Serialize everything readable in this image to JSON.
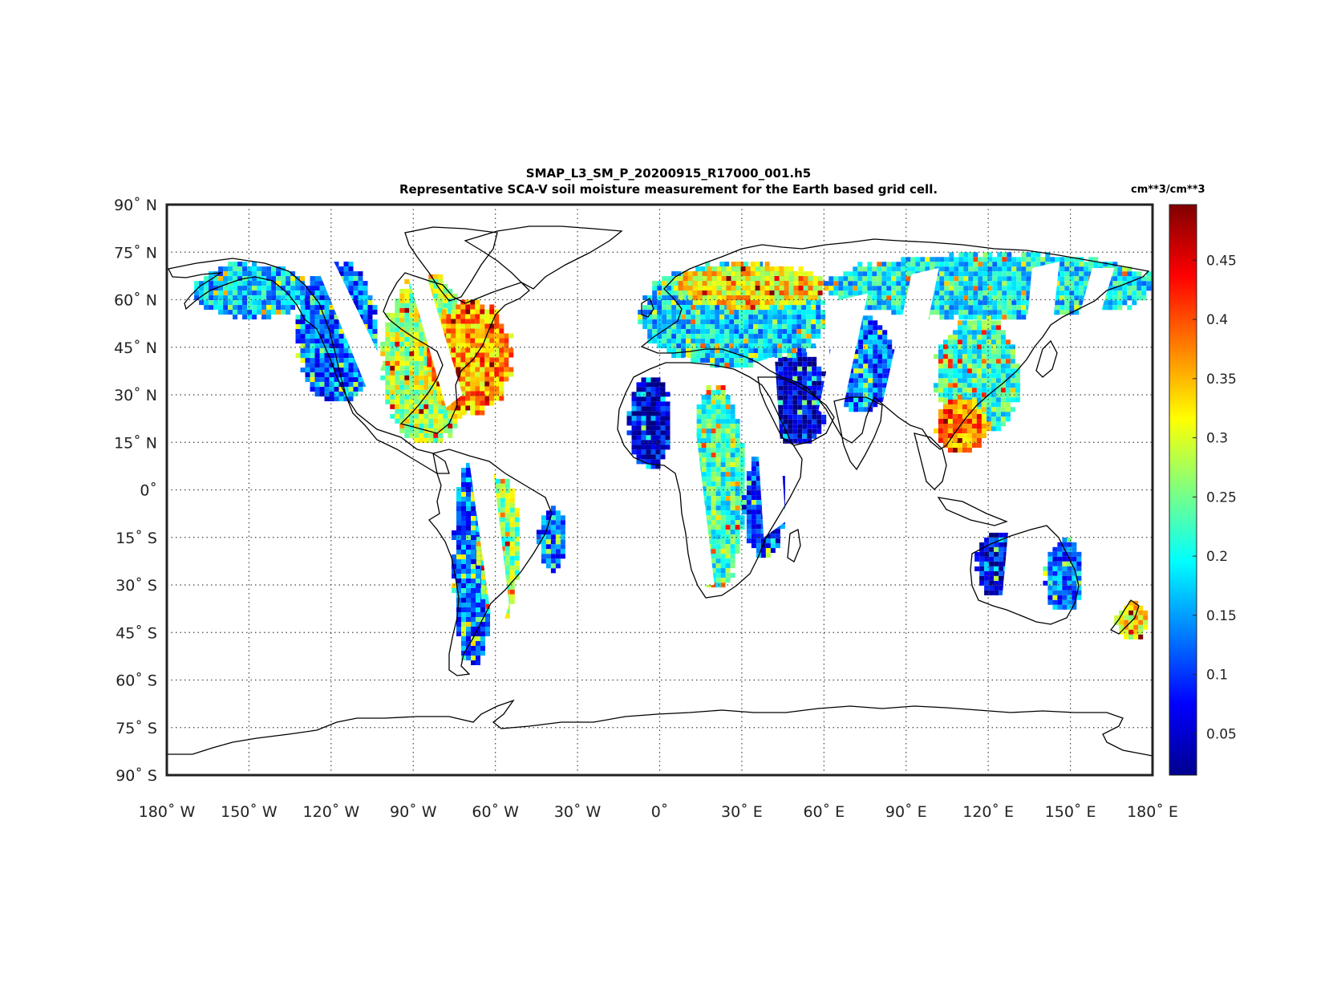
{
  "figure": {
    "title": "SMAP_L3_SM_P_20200915_R17000_001.h5",
    "subtitle": "Representative SCA-V soil moisture measurement for the Earth based grid cell."
  },
  "map": {
    "projection": "equirectangular",
    "lon_range": [
      -180,
      180
    ],
    "lat_range": [
      -90,
      90
    ],
    "grid": "dotted",
    "lon_ticks": [
      {
        "value": -180,
        "label": "180˚ W"
      },
      {
        "value": -150,
        "label": "150˚ W"
      },
      {
        "value": -120,
        "label": "120˚ W"
      },
      {
        "value": -90,
        "label": "90˚ W"
      },
      {
        "value": -60,
        "label": "60˚ W"
      },
      {
        "value": -30,
        "label": "30˚ W"
      },
      {
        "value": 0,
        "label": "0˚"
      },
      {
        "value": 30,
        "label": "30˚ E"
      },
      {
        "value": 60,
        "label": "60˚ E"
      },
      {
        "value": 90,
        "label": "90˚ E"
      },
      {
        "value": 120,
        "label": "120˚ E"
      },
      {
        "value": 150,
        "label": "150˚ E"
      },
      {
        "value": 180,
        "label": "180˚ E"
      }
    ],
    "lat_ticks": [
      {
        "value": 90,
        "label": "90˚ N"
      },
      {
        "value": 75,
        "label": "75˚ N"
      },
      {
        "value": 60,
        "label": "60˚ N"
      },
      {
        "value": 45,
        "label": "45˚ N"
      },
      {
        "value": 30,
        "label": "30˚ N"
      },
      {
        "value": 15,
        "label": "15˚ N"
      },
      {
        "value": 0,
        "label": "0˚"
      },
      {
        "value": -15,
        "label": "15˚ S"
      },
      {
        "value": -30,
        "label": "30˚ S"
      },
      {
        "value": -45,
        "label": "45˚ S"
      },
      {
        "value": -60,
        "label": "60˚ S"
      },
      {
        "value": -75,
        "label": "75˚ S"
      },
      {
        "value": -90,
        "label": "90˚ S"
      }
    ],
    "swath_regions": [
      {
        "name": "North America west",
        "lon": [
          -133,
          -104
        ],
        "lat": [
          28,
          72
        ],
        "level": 0.12
      },
      {
        "name": "North America central",
        "lon": [
          -102,
          -70
        ],
        "lat": [
          15,
          68
        ],
        "level": 0.28
      },
      {
        "name": "North America east",
        "lon": [
          -85,
          -55
        ],
        "lat": [
          25,
          60
        ],
        "level": 0.36
      },
      {
        "name": "Alaska",
        "lon": [
          -170,
          -130
        ],
        "lat": [
          55,
          72
        ],
        "level": 0.17
      },
      {
        "name": "South America west",
        "lon": [
          -76,
          -62
        ],
        "lat": [
          -55,
          10
        ],
        "level": 0.12
      },
      {
        "name": "South America east",
        "lon": [
          -67,
          -52
        ],
        "lat": [
          -40,
          5
        ],
        "level": 0.26
      },
      {
        "name": "Brazil coast",
        "lon": [
          -45,
          -35
        ],
        "lat": [
          -25,
          -5
        ],
        "level": 0.12
      },
      {
        "name": "West Africa",
        "lon": [
          -12,
          3
        ],
        "lat": [
          7,
          37
        ],
        "level": 0.06
      },
      {
        "name": "Central Africa",
        "lon": [
          10,
          30
        ],
        "lat": [
          -30,
          33
        ],
        "level": 0.22
      },
      {
        "name": "East Africa",
        "lon": [
          30,
          45
        ],
        "lat": [
          -20,
          12
        ],
        "level": 0.1
      },
      {
        "name": "Arabia",
        "lon": [
          38,
          60
        ],
        "lat": [
          15,
          45
        ],
        "level": 0.05
      },
      {
        "name": "Europe",
        "lon": [
          -8,
          60
        ],
        "lat": [
          40,
          72
        ],
        "level": 0.18
      },
      {
        "name": "Scandinavia",
        "lon": [
          5,
          60
        ],
        "lat": [
          58,
          72
        ],
        "level": 0.32
      },
      {
        "name": "Central Asia",
        "lon": [
          62,
          85
        ],
        "lat": [
          25,
          55
        ],
        "level": 0.12
      },
      {
        "name": "Siberia",
        "lon": [
          60,
          180
        ],
        "lat": [
          55,
          75
        ],
        "level": 0.19
      },
      {
        "name": "East Asia",
        "lon": [
          100,
          130
        ],
        "lat": [
          18,
          55
        ],
        "level": 0.22
      },
      {
        "name": "South China",
        "lon": [
          100,
          118
        ],
        "lat": [
          12,
          30
        ],
        "level": 0.38
      },
      {
        "name": "Australia west",
        "lon": [
          115,
          131
        ],
        "lat": [
          -33,
          -12
        ],
        "level": 0.07
      },
      {
        "name": "Australia east",
        "lon": [
          140,
          154
        ],
        "lat": [
          -38,
          -15
        ],
        "level": 0.12
      },
      {
        "name": "New Zealand",
        "lon": [
          166,
          178
        ],
        "lat": [
          -46,
          -35
        ],
        "level": 0.32
      }
    ]
  },
  "colorbar": {
    "units": "cm**3/cm**3",
    "range": [
      0.015,
      0.497
    ],
    "colormap": "jet",
    "ticks": [
      {
        "value": 0.05,
        "label": "0.05"
      },
      {
        "value": 0.1,
        "label": "0.1"
      },
      {
        "value": 0.15,
        "label": "0.15"
      },
      {
        "value": 0.2,
        "label": "0.2"
      },
      {
        "value": 0.25,
        "label": "0.25"
      },
      {
        "value": 0.3,
        "label": "0.3"
      },
      {
        "value": 0.35,
        "label": "0.35"
      },
      {
        "value": 0.4,
        "label": "0.4"
      },
      {
        "value": 0.45,
        "label": "0.45"
      }
    ]
  },
  "colors": {
    "frame": "#222222",
    "grid": "#444444",
    "coast": "#000000"
  }
}
